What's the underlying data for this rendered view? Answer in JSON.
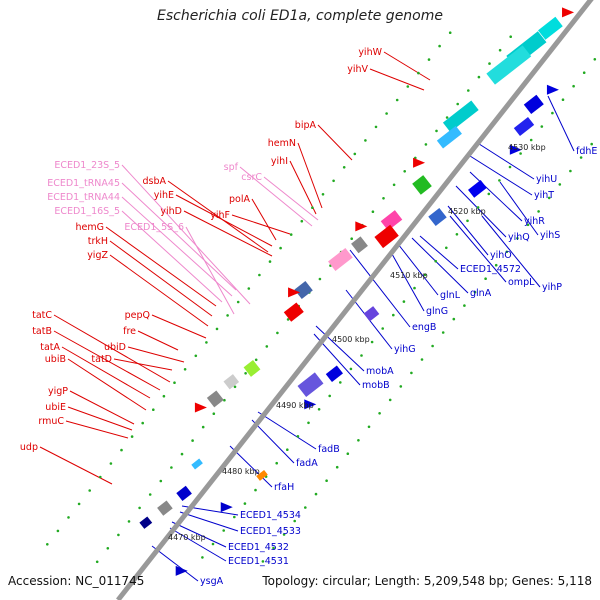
{
  "title": "Escherichia coli ED1a, complete genome",
  "accession": "Accession: NC_011745",
  "summary": "Topology: circular; Length: 5,209,548 bp; Genes: 5,118",
  "colors": {
    "rna": "#ee88cc",
    "fwd_label": "#dd0000",
    "rev_label": "#0000cc",
    "backbone": "#888888",
    "tick_dot": "#22aa22"
  },
  "ruler": [
    "4470 kbp",
    "4480 kbp",
    "4490 kbp",
    "4500 kbp",
    "4510 kbp",
    "4520 kbp",
    "4530 kbp"
  ],
  "left_labels": [
    {
      "text": "yihW",
      "kind": "gene"
    },
    {
      "text": "yihV",
      "kind": "gene"
    },
    {
      "text": "bipA",
      "kind": "gene"
    },
    {
      "text": "hemN",
      "kind": "gene"
    },
    {
      "text": "yihI",
      "kind": "gene"
    },
    {
      "text": "ECED1_23S_5",
      "kind": "rna"
    },
    {
      "text": "spf",
      "kind": "rna"
    },
    {
      "text": "csrC",
      "kind": "rna"
    },
    {
      "text": "dsbA",
      "kind": "gene"
    },
    {
      "text": "ECED1_tRNA45",
      "kind": "rna"
    },
    {
      "text": "yihE",
      "kind": "gene"
    },
    {
      "text": "ECED1_tRNA44",
      "kind": "rna"
    },
    {
      "text": "polA",
      "kind": "gene"
    },
    {
      "text": "ECED1_16S_5",
      "kind": "rna"
    },
    {
      "text": "yihD",
      "kind": "gene"
    },
    {
      "text": "yihF",
      "kind": "gene"
    },
    {
      "text": "ECED1_5S_6",
      "kind": "rna"
    },
    {
      "text": "hemG",
      "kind": "gene"
    },
    {
      "text": "trkH",
      "kind": "gene"
    },
    {
      "text": "yigZ",
      "kind": "gene"
    },
    {
      "text": "tatC",
      "kind": "gene"
    },
    {
      "text": "pepQ",
      "kind": "gene"
    },
    {
      "text": "tatB",
      "kind": "gene"
    },
    {
      "text": "fre",
      "kind": "gene"
    },
    {
      "text": "tatA",
      "kind": "gene"
    },
    {
      "text": "ubiD",
      "kind": "gene"
    },
    {
      "text": "ubiB",
      "kind": "gene"
    },
    {
      "text": "tatD",
      "kind": "gene"
    },
    {
      "text": "yigP",
      "kind": "gene"
    },
    {
      "text": "ubiE",
      "kind": "gene"
    },
    {
      "text": "rmuC",
      "kind": "gene"
    },
    {
      "text": "udp",
      "kind": "gene"
    }
  ],
  "right_labels": [
    "fdhE",
    "yihU",
    "yihT",
    "yihS",
    "yihR",
    "yihQ",
    "yihO",
    "yihP",
    "ECED1_4572",
    "ompL",
    "glnA",
    "glnL",
    "glnG",
    "engB",
    "yihG",
    "mobA",
    "mobB",
    "fadB",
    "fadA",
    "rfaH",
    "ECED1_4534",
    "ECED1_4533",
    "ECED1_4532",
    "ECED1_4531",
    "ysgA"
  ]
}
